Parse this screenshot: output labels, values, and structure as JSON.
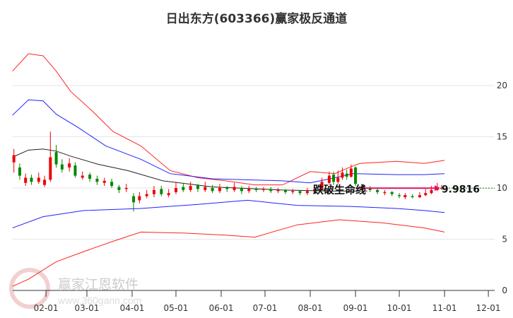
{
  "chart_data": {
    "type": "candlestick-band",
    "title": "日出东方(603366)赢家极反通道",
    "x_unit": "day-of-year",
    "xticks": [
      {
        "label": "02-01",
        "d": 32
      },
      {
        "label": "03-01",
        "d": 60
      },
      {
        "label": "04-01",
        "d": 91
      },
      {
        "label": "05-01",
        "d": 121
      },
      {
        "label": "06-01",
        "d": 152
      },
      {
        "label": "07-01",
        "d": 182
      },
      {
        "label": "08-01",
        "d": 213
      },
      {
        "label": "09-01",
        "d": 244
      },
      {
        "label": "10-01",
        "d": 274
      },
      {
        "label": "11-01",
        "d": 305
      },
      {
        "label": "12-01",
        "d": 335
      }
    ],
    "yticks": [
      0,
      5,
      10,
      15,
      20
    ],
    "ylim": [
      0,
      23.5
    ],
    "upper_red": [
      [
        9,
        21.4
      ],
      [
        20,
        23.1
      ],
      [
        30,
        22.9
      ],
      [
        39,
        21.4
      ],
      [
        49,
        19.4
      ],
      [
        63,
        17.6
      ],
      [
        78,
        15.5
      ],
      [
        97,
        14.1
      ],
      [
        117,
        11.7
      ],
      [
        136,
        11.0
      ],
      [
        155,
        10.7
      ],
      [
        175,
        10.3
      ],
      [
        194,
        10.3
      ],
      [
        213,
        11.6
      ],
      [
        230,
        11.4
      ],
      [
        238,
        11.9
      ],
      [
        247,
        12.4
      ],
      [
        272,
        12.6
      ],
      [
        291,
        12.4
      ],
      [
        305,
        12.7
      ]
    ],
    "upper_blue": [
      [
        9,
        17.1
      ],
      [
        20,
        18.6
      ],
      [
        30,
        18.5
      ],
      [
        39,
        17.2
      ],
      [
        54,
        15.9
      ],
      [
        73,
        14.1
      ],
      [
        97,
        12.8
      ],
      [
        117,
        11.4
      ],
      [
        146,
        10.9
      ],
      [
        194,
        10.7
      ],
      [
        213,
        10.5
      ],
      [
        230,
        11.0
      ],
      [
        242,
        11.4
      ],
      [
        272,
        11.3
      ],
      [
        291,
        11.3
      ],
      [
        305,
        11.4
      ]
    ],
    "ma_black": [
      [
        9,
        13.0
      ],
      [
        20,
        13.7
      ],
      [
        30,
        13.8
      ],
      [
        39,
        13.6
      ],
      [
        49,
        13.1
      ],
      [
        68,
        12.3
      ],
      [
        88,
        11.7
      ],
      [
        112,
        10.7
      ],
      [
        146,
        10.1
      ],
      [
        194,
        9.8
      ],
      [
        228,
        9.7
      ],
      [
        252,
        9.7
      ]
    ],
    "lower_blue": [
      [
        9,
        6.1
      ],
      [
        30,
        7.2
      ],
      [
        58,
        7.8
      ],
      [
        97,
        8.0
      ],
      [
        136,
        8.4
      ],
      [
        170,
        8.8
      ],
      [
        204,
        8.3
      ],
      [
        240,
        8.2
      ],
      [
        272,
        8.0
      ],
      [
        291,
        7.8
      ],
      [
        305,
        7.6
      ]
    ],
    "lower_red": [
      [
        9,
        0.4
      ],
      [
        20,
        1.1
      ],
      [
        39,
        2.8
      ],
      [
        58,
        3.8
      ],
      [
        78,
        4.8
      ],
      [
        97,
        5.7
      ],
      [
        126,
        5.6
      ],
      [
        155,
        5.4
      ],
      [
        175,
        5.2
      ],
      [
        204,
        6.4
      ],
      [
        233,
        6.9
      ],
      [
        262,
        6.6
      ],
      [
        291,
        6.1
      ],
      [
        305,
        5.7
      ]
    ],
    "candles": [
      [
        10,
        12.5,
        13.2,
        13.8,
        11.5
      ],
      [
        14,
        12.0,
        11.2,
        12.4,
        10.8
      ],
      [
        18,
        10.5,
        11.0,
        11.4,
        10.2
      ],
      [
        22,
        11.0,
        10.6,
        11.3,
        10.3
      ],
      [
        27,
        10.6,
        11.0,
        11.5,
        10.4
      ],
      [
        31,
        10.3,
        10.8,
        11.2,
        10.1
      ],
      [
        35,
        10.8,
        13.0,
        15.5,
        10.6
      ],
      [
        39,
        13.5,
        12.3,
        14.2,
        12.0
      ],
      [
        43,
        12.3,
        11.8,
        12.8,
        11.5
      ],
      [
        48,
        12.0,
        12.4,
        12.9,
        11.6
      ],
      [
        52,
        12.2,
        11.2,
        12.5,
        11.0
      ],
      [
        57,
        11.0,
        11.2,
        11.6,
        10.8
      ],
      [
        62,
        11.3,
        10.9,
        11.5,
        10.6
      ],
      [
        67,
        10.9,
        10.6,
        11.2,
        10.3
      ],
      [
        72,
        10.5,
        10.7,
        11.0,
        10.2
      ],
      [
        77,
        10.6,
        10.2,
        10.9,
        10.0
      ],
      [
        82,
        10.1,
        9.8,
        10.3,
        9.5
      ],
      [
        87,
        9.9,
        10.0,
        10.4,
        9.6
      ],
      [
        92,
        9.2,
        8.6,
        9.5,
        7.7
      ],
      [
        96,
        8.8,
        9.2,
        9.6,
        8.5
      ],
      [
        101,
        9.2,
        9.4,
        9.8,
        9.0
      ],
      [
        106,
        9.4,
        9.8,
        10.2,
        9.1
      ],
      [
        111,
        9.9,
        9.4,
        10.2,
        9.2
      ],
      [
        116,
        9.3,
        9.5,
        9.9,
        9.1
      ],
      [
        121,
        9.6,
        10.0,
        10.6,
        9.4
      ],
      [
        126,
        10.1,
        9.8,
        10.5,
        9.6
      ],
      [
        131,
        9.8,
        10.2,
        10.6,
        9.6
      ],
      [
        136,
        10.3,
        9.9,
        10.4,
        9.6
      ],
      [
        141,
        9.8,
        10.1,
        10.6,
        9.6
      ],
      [
        146,
        10.0,
        9.7,
        10.3,
        9.5
      ],
      [
        151,
        9.7,
        10.0,
        10.4,
        9.5
      ],
      [
        156,
        10.0,
        9.9,
        10.2,
        9.6
      ],
      [
        161,
        9.8,
        10.1,
        10.5,
        9.6
      ],
      [
        166,
        10.0,
        9.7,
        10.2,
        9.4
      ],
      [
        171,
        9.7,
        9.9,
        10.2,
        9.5
      ],
      [
        176,
        9.9,
        9.8,
        10.1,
        9.6
      ],
      [
        181,
        9.8,
        9.9,
        10.1,
        9.6
      ],
      [
        186,
        9.9,
        9.7,
        10.1,
        9.5
      ],
      [
        191,
        9.7,
        9.8,
        10.0,
        9.5
      ],
      [
        196,
        9.8,
        9.6,
        9.9,
        9.4
      ],
      [
        201,
        9.6,
        9.7,
        9.9,
        9.4
      ],
      [
        206,
        9.7,
        9.5,
        9.8,
        9.3
      ],
      [
        211,
        9.5,
        9.7,
        10.0,
        9.3
      ],
      [
        216,
        9.7,
        9.9,
        10.3,
        9.5
      ],
      [
        221,
        9.9,
        10.6,
        11.0,
        9.8
      ],
      [
        226,
        10.5,
        11.2,
        11.6,
        10.3
      ],
      [
        229,
        11.3,
        10.6,
        11.6,
        10.3
      ],
      [
        232,
        10.6,
        11.0,
        11.7,
        10.4
      ],
      [
        235,
        11.0,
        11.5,
        12.0,
        10.8
      ],
      [
        238,
        11.4,
        11.1,
        11.8,
        10.8
      ],
      [
        241,
        11.1,
        11.9,
        12.3,
        11.0
      ],
      [
        244,
        12.0,
        10.4,
        12.1,
        10.2
      ],
      [
        249,
        10.2,
        10.0,
        10.3,
        9.8
      ],
      [
        254,
        10.0,
        9.8,
        10.2,
        9.6
      ],
      [
        259,
        9.8,
        9.6,
        10.0,
        9.4
      ],
      [
        264,
        9.5,
        9.6,
        9.8,
        9.3
      ],
      [
        269,
        9.6,
        9.4,
        9.7,
        9.2
      ],
      [
        274,
        9.3,
        9.2,
        9.5,
        9.0
      ],
      [
        278,
        9.1,
        9.3,
        9.5,
        8.9
      ],
      [
        283,
        9.2,
        9.1,
        9.4,
        9.0
      ],
      [
        288,
        9.1,
        9.3,
        9.6,
        9.0
      ],
      [
        292,
        9.3,
        9.5,
        9.9,
        9.2
      ],
      [
        296,
        9.5,
        9.8,
        10.2,
        9.4
      ],
      [
        300,
        9.8,
        10.1,
        10.5,
        9.7
      ],
      [
        303,
        10.0,
        10.0,
        10.3,
        9.8
      ]
    ],
    "annotation": {
      "label": "跌破生命线",
      "arrow_value": "9.9816",
      "level": 9.9816,
      "from_day": 246,
      "to_day": 302
    }
  },
  "watermark": {
    "brand": "赢家江恩软件",
    "site": "www.360gann.com"
  }
}
